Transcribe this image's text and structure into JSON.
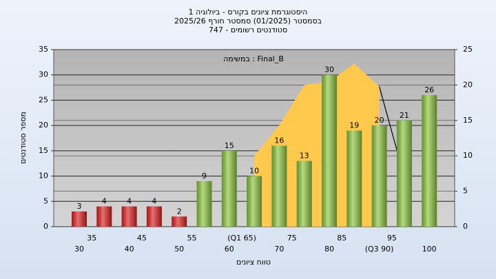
{
  "chart_data": {
    "type": "bar",
    "title": [
      "היסטוגרמת ציונים בקורס - ביולוגיה 1",
      "בסמסטר (01/2025) סמסטר חורף 2025/26",
      "סטודנטים רשומים - 747"
    ],
    "annotation": "Final_B : במשימה",
    "x_label": "טווח ציונים",
    "y_label": "מספר סטודנטים",
    "categories": [
      "30",
      "35",
      "40",
      "45",
      "50",
      "55",
      "60",
      "(Q1 65)",
      "70",
      "75",
      "80",
      "85",
      "(Q3 90)",
      "95",
      "100"
    ],
    "series": [
      {
        "type": "bar",
        "colors": [
          "#e02020",
          "#e02020",
          "#e02020",
          "#e02020",
          "#e02020",
          "#8dc63f",
          "#8dc63f",
          "#8dc63f",
          "#8dc63f",
          "#8dc63f",
          "#8dc63f",
          "#8dc63f",
          "#8dc63f",
          "#8dc63f",
          "#8dc63f"
        ],
        "values": [
          3,
          4,
          4,
          4,
          2,
          9,
          15,
          10,
          16,
          13,
          30,
          19,
          20,
          21,
          26
        ]
      },
      {
        "type": "area",
        "axis": "y2",
        "color": "#ffc94d",
        "values": [
          null,
          null,
          null,
          null,
          null,
          null,
          null,
          10,
          14.3,
          20,
          20.5,
          23,
          19.8,
          null,
          null
        ]
      },
      {
        "type": "line",
        "axis": "y2",
        "color": "#000000",
        "values": [
          null,
          null,
          null,
          null,
          null,
          null,
          null,
          null,
          null,
          null,
          null,
          null,
          19.8,
          7,
          null
        ]
      }
    ],
    "ylim": [
      0,
      35
    ],
    "yticks": [
      0,
      5,
      10,
      15,
      20,
      25,
      30,
      35
    ],
    "y2lim": [
      0,
      25
    ],
    "y2ticks": [
      0,
      5,
      10,
      15,
      20,
      25
    ],
    "grid": true
  }
}
